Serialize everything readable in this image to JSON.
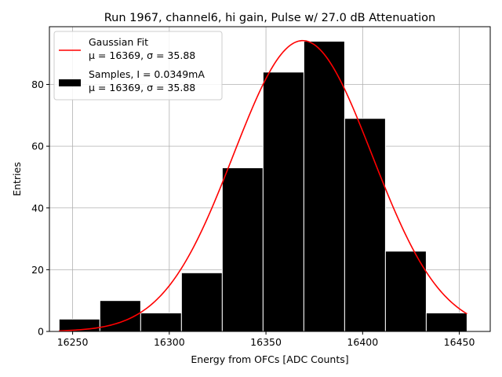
{
  "chart_data": {
    "type": "bar",
    "title": "Run 1967, channel6, hi gain, Pulse w/ 27.0 dB Attenuation",
    "xlabel": "Energy from OFCs [ADC Counts]",
    "ylabel": "Entries",
    "xlim": [
      16238,
      16466
    ],
    "ylim": [
      0,
      98.7
    ],
    "grid": true,
    "x_ticks": [
      16250,
      16300,
      16350,
      16400,
      16450
    ],
    "y_ticks": [
      0,
      20,
      40,
      60,
      80
    ],
    "histogram": {
      "name": "Samples, I = 0.0349mA",
      "bin_edges": [
        16243,
        16264.1,
        16285.2,
        16306.3,
        16327.4,
        16348.5,
        16369.6,
        16390.7,
        16411.8,
        16432.9,
        16454
      ],
      "counts": [
        4,
        10,
        6,
        19,
        53,
        84,
        94,
        69,
        26,
        6
      ],
      "color": "#000000",
      "edgecolor": "#ffffff"
    },
    "fit": {
      "name": "Gaussian Fit",
      "mu": 16369,
      "sigma": 35.88,
      "amplitude": 94.2,
      "x_range": [
        16243,
        16454
      ],
      "color": "#ff0000"
    },
    "legend": {
      "location": "upper-left",
      "entries": [
        {
          "key": "fit",
          "line1": "Gaussian Fit",
          "mu_label": "μ = 16369",
          "sigma_label": "σ = 35.88"
        },
        {
          "key": "samples",
          "line1": "Samples, I = 0.0349mA",
          "mu_label": "μ = 16369",
          "sigma_label": "σ = 35.88"
        }
      ]
    }
  }
}
